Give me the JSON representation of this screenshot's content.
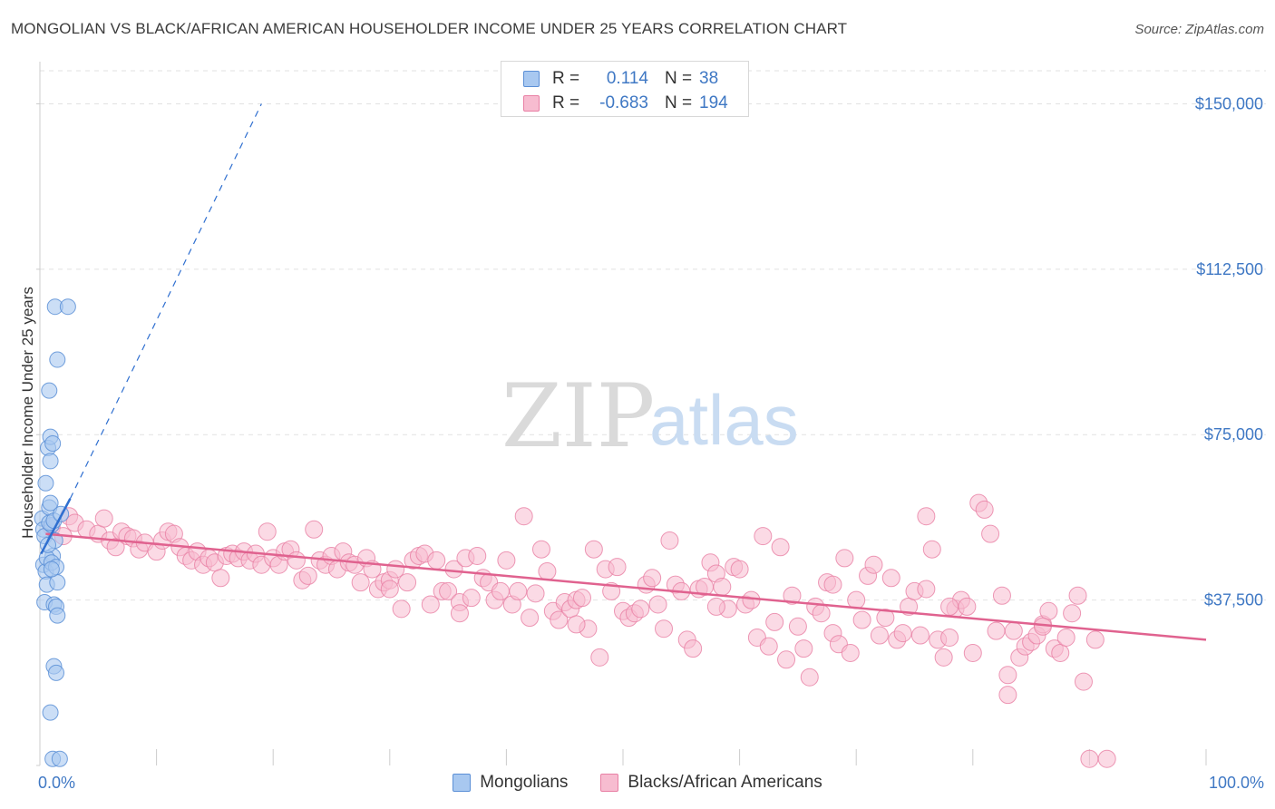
{
  "header": {
    "title": "MONGOLIAN VS BLACK/AFRICAN AMERICAN HOUSEHOLDER INCOME UNDER 25 YEARS CORRELATION CHART",
    "source": "Source: ZipAtlas.com"
  },
  "watermark": {
    "zip": "ZIP",
    "atlas": "atlas"
  },
  "colors": {
    "mongolian_fill": "#a8c8f0",
    "mongolian_stroke": "#5b8fd6",
    "mongolian_line": "#2f6fd0",
    "black_fill": "#f7bcd0",
    "black_stroke": "#e87fa4",
    "black_line": "#e0628f",
    "tick_text": "#3f78c4",
    "grid": "#e2e2e2"
  },
  "legend": {
    "rows": [
      {
        "r_label": "R =",
        "r_value": "0.114",
        "n_label": "N =",
        "n_value": "38"
      },
      {
        "r_label": "R =",
        "r_value": "-0.683",
        "n_label": "N =",
        "n_value": "194"
      }
    ]
  },
  "bottom_legend": {
    "items": [
      {
        "label": "Mongolians"
      },
      {
        "label": "Blacks/African Americans"
      }
    ]
  },
  "chart_data": {
    "type": "scatter",
    "title": "MONGOLIAN VS BLACK/AFRICAN AMERICAN HOUSEHOLDER INCOME UNDER 25 YEARS CORRELATION CHART",
    "xlabel": "",
    "ylabel": "Householder Income Under 25 years",
    "xlim": [
      0,
      100
    ],
    "ylim": [
      0,
      157500
    ],
    "x_tick_labels": [
      "0.0%",
      "100.0%"
    ],
    "y_ticks": [
      37500,
      75000,
      112500,
      150000
    ],
    "y_tick_labels": [
      "$37,500",
      "$75,000",
      "$112,500",
      "$150,000"
    ],
    "grid": true,
    "legend_position": "top-center",
    "series": [
      {
        "name": "Mongolians",
        "r": 0.114,
        "n": 38,
        "trend_solid": [
          [
            0.1,
            48000
          ],
          [
            2.6,
            60500
          ]
        ],
        "trend_dashed": [
          [
            2.6,
            60500
          ],
          [
            19,
            150000
          ]
        ],
        "points": [
          [
            0.2,
            56000
          ],
          [
            0.3,
            53500
          ],
          [
            0.4,
            52000
          ],
          [
            0.3,
            45500
          ],
          [
            0.5,
            44000
          ],
          [
            0.6,
            41000
          ],
          [
            0.4,
            37000
          ],
          [
            0.5,
            64000
          ],
          [
            0.7,
            72000
          ],
          [
            0.8,
            58500
          ],
          [
            0.9,
            59500
          ],
          [
            1.0,
            54500
          ],
          [
            1.1,
            47500
          ],
          [
            0.6,
            47000
          ],
          [
            0.8,
            55000
          ],
          [
            1.2,
            55500
          ],
          [
            1.3,
            51000
          ],
          [
            1.0,
            46000
          ],
          [
            1.4,
            45000
          ],
          [
            1.5,
            41500
          ],
          [
            1.2,
            36500
          ],
          [
            1.4,
            36000
          ],
          [
            1.5,
            34000
          ],
          [
            1.2,
            22500
          ],
          [
            1.4,
            21000
          ],
          [
            0.9,
            12000
          ],
          [
            1.3,
            104000
          ],
          [
            2.4,
            104000
          ],
          [
            1.5,
            92000
          ],
          [
            0.8,
            85000
          ],
          [
            0.9,
            74500
          ],
          [
            1.1,
            73000
          ],
          [
            0.9,
            69000
          ],
          [
            1.0,
            44500
          ],
          [
            1.1,
            1500
          ],
          [
            1.7,
            1500
          ],
          [
            1.8,
            57000
          ],
          [
            0.7,
            50000
          ]
        ]
      },
      {
        "name": "Blacks/African Americans",
        "r": -0.683,
        "n": 194,
        "trend_solid": [
          [
            0.5,
            52500
          ],
          [
            100,
            28500
          ]
        ],
        "points": [
          [
            1,
            54000
          ],
          [
            2,
            52000
          ],
          [
            2.5,
            56500
          ],
          [
            3,
            55000
          ],
          [
            4,
            53500
          ],
          [
            5,
            52500
          ],
          [
            5.5,
            56000
          ],
          [
            6,
            51000
          ],
          [
            6.5,
            49500
          ],
          [
            7,
            53000
          ],
          [
            7.5,
            52000
          ],
          [
            8,
            51500
          ],
          [
            8.5,
            49000
          ],
          [
            9,
            50500
          ],
          [
            10,
            48500
          ],
          [
            10.5,
            51000
          ],
          [
            11,
            53000
          ],
          [
            11.5,
            52500
          ],
          [
            12,
            49500
          ],
          [
            12.5,
            47500
          ],
          [
            13,
            46500
          ],
          [
            13.5,
            48500
          ],
          [
            14,
            45500
          ],
          [
            14.5,
            47000
          ],
          [
            15,
            46000
          ],
          [
            15.5,
            42500
          ],
          [
            16,
            47500
          ],
          [
            16.5,
            48000
          ],
          [
            17,
            47000
          ],
          [
            17.5,
            48500
          ],
          [
            18,
            46500
          ],
          [
            18.5,
            48000
          ],
          [
            19,
            45500
          ],
          [
            19.5,
            53000
          ],
          [
            20,
            47000
          ],
          [
            20.5,
            45500
          ],
          [
            21,
            48500
          ],
          [
            21.5,
            49000
          ],
          [
            22,
            46500
          ],
          [
            22.5,
            42000
          ],
          [
            23,
            43000
          ],
          [
            23.5,
            53500
          ],
          [
            24,
            46500
          ],
          [
            24.5,
            45500
          ],
          [
            25,
            47500
          ],
          [
            25.5,
            44500
          ],
          [
            26,
            48500
          ],
          [
            26.5,
            46000
          ],
          [
            27,
            45500
          ],
          [
            27.5,
            41500
          ],
          [
            28,
            47000
          ],
          [
            28.5,
            44500
          ],
          [
            29,
            40000
          ],
          [
            29.5,
            41500
          ],
          [
            30,
            42000
          ],
          [
            30.5,
            44500
          ],
          [
            31,
            35500
          ],
          [
            31.5,
            41500
          ],
          [
            32,
            46500
          ],
          [
            32.5,
            47500
          ],
          [
            33,
            48000
          ],
          [
            33.5,
            36500
          ],
          [
            34,
            46500
          ],
          [
            34.5,
            39500
          ],
          [
            35,
            39500
          ],
          [
            35.5,
            44500
          ],
          [
            36,
            37000
          ],
          [
            36.5,
            47000
          ],
          [
            37,
            38000
          ],
          [
            37.5,
            47500
          ],
          [
            38,
            42500
          ],
          [
            38.5,
            41500
          ],
          [
            39,
            37500
          ],
          [
            39.5,
            39500
          ],
          [
            40,
            46500
          ],
          [
            40.5,
            36500
          ],
          [
            41,
            39500
          ],
          [
            41.5,
            56500
          ],
          [
            42,
            33500
          ],
          [
            42.5,
            39000
          ],
          [
            43,
            49000
          ],
          [
            43.5,
            44000
          ],
          [
            44,
            35000
          ],
          [
            44.5,
            33000
          ],
          [
            45,
            37000
          ],
          [
            45.5,
            35500
          ],
          [
            46,
            37500
          ],
          [
            46.5,
            38000
          ],
          [
            47,
            31000
          ],
          [
            47.5,
            49000
          ],
          [
            48,
            24500
          ],
          [
            48.5,
            44500
          ],
          [
            49,
            39500
          ],
          [
            49.5,
            45000
          ],
          [
            50,
            35000
          ],
          [
            50.5,
            33500
          ],
          [
            51,
            34500
          ],
          [
            51.5,
            35500
          ],
          [
            52,
            41000
          ],
          [
            52.5,
            42500
          ],
          [
            53,
            36500
          ],
          [
            53.5,
            31000
          ],
          [
            54,
            51000
          ],
          [
            54.5,
            41000
          ],
          [
            55,
            39500
          ],
          [
            55.5,
            28500
          ],
          [
            56,
            26500
          ],
          [
            56.5,
            40000
          ],
          [
            57,
            40500
          ],
          [
            57.5,
            46000
          ],
          [
            58,
            43500
          ],
          [
            58.5,
            40500
          ],
          [
            59,
            35500
          ],
          [
            59.5,
            45000
          ],
          [
            60,
            44500
          ],
          [
            60.5,
            36500
          ],
          [
            61,
            37500
          ],
          [
            61.5,
            29000
          ],
          [
            62,
            52000
          ],
          [
            62.5,
            27000
          ],
          [
            63,
            32500
          ],
          [
            63.5,
            49500
          ],
          [
            64,
            24000
          ],
          [
            64.5,
            38500
          ],
          [
            65,
            31500
          ],
          [
            65.5,
            26500
          ],
          [
            66,
            20000
          ],
          [
            66.5,
            36000
          ],
          [
            67,
            34500
          ],
          [
            67.5,
            41500
          ],
          [
            68,
            30000
          ],
          [
            68.5,
            27500
          ],
          [
            69,
            47000
          ],
          [
            69.5,
            25500
          ],
          [
            70,
            37500
          ],
          [
            70.5,
            33000
          ],
          [
            71,
            43000
          ],
          [
            71.5,
            45500
          ],
          [
            72,
            29500
          ],
          [
            72.5,
            33500
          ],
          [
            73,
            42500
          ],
          [
            73.5,
            28500
          ],
          [
            74,
            30000
          ],
          [
            74.5,
            36000
          ],
          [
            75,
            39500
          ],
          [
            75.5,
            29500
          ],
          [
            76,
            56500
          ],
          [
            76.5,
            49000
          ],
          [
            77,
            28500
          ],
          [
            77.5,
            24500
          ],
          [
            78,
            29000
          ],
          [
            78.5,
            35500
          ],
          [
            79,
            37500
          ],
          [
            79.5,
            36000
          ],
          [
            80,
            25500
          ],
          [
            80.5,
            59500
          ],
          [
            81,
            58000
          ],
          [
            81.5,
            52500
          ],
          [
            82,
            30500
          ],
          [
            82.5,
            38500
          ],
          [
            83,
            20500
          ],
          [
            83.5,
            30500
          ],
          [
            84,
            24500
          ],
          [
            84.5,
            27000
          ],
          [
            85,
            28000
          ],
          [
            85.5,
            29500
          ],
          [
            86,
            32000
          ],
          [
            86.5,
            35000
          ],
          [
            87,
            26500
          ],
          [
            87.5,
            25500
          ],
          [
            88,
            29000
          ],
          [
            88.5,
            34500
          ],
          [
            89,
            38500
          ],
          [
            89.5,
            19000
          ],
          [
            90,
            1500
          ],
          [
            90.5,
            28500
          ],
          [
            30,
            40000
          ],
          [
            36,
            34500
          ],
          [
            46,
            32000
          ],
          [
            58,
            36000
          ],
          [
            68,
            41000
          ],
          [
            78,
            36000
          ],
          [
            86,
            31500
          ],
          [
            76,
            40000
          ],
          [
            83,
            16000
          ],
          [
            91.5,
            1500
          ]
        ]
      }
    ]
  }
}
